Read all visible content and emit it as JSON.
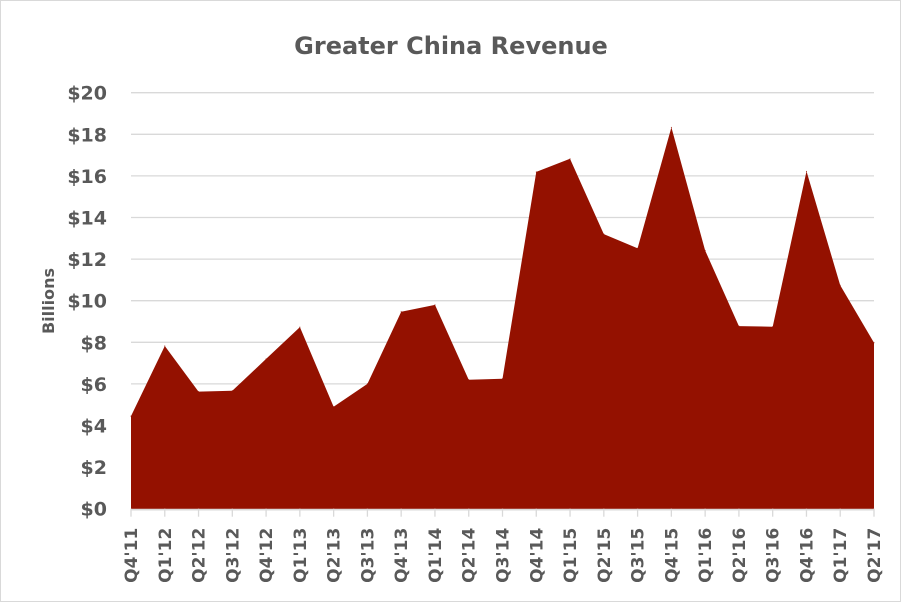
{
  "chart_data": {
    "type": "area",
    "title": "Greater China Revenue",
    "xlabel": "",
    "ylabel": "Billions",
    "ylim": [
      0,
      20
    ],
    "yticks": [
      "$0",
      "$2",
      "$4",
      "$6",
      "$8",
      "$10",
      "$12",
      "$14",
      "$16",
      "$18",
      "$20"
    ],
    "grid": true,
    "legend": "none",
    "color": "#941100",
    "categories": [
      "Q4'11",
      "Q1'12",
      "Q2'12",
      "Q3'12",
      "Q4'12",
      "Q1'13",
      "Q2'13",
      "Q3'13",
      "Q4'13",
      "Q1'14",
      "Q2'14",
      "Q3'14",
      "Q4'14",
      "Q1'15",
      "Q2'15",
      "Q3'15",
      "Q4'15",
      "Q1'16",
      "Q2'16",
      "Q3'16",
      "Q4'16",
      "Q1'17",
      "Q2'17"
    ],
    "values": [
      4.45,
      7.82,
      5.63,
      5.67,
      7.2,
      8.73,
      4.9,
      6.0,
      9.47,
      9.8,
      6.2,
      6.25,
      16.19,
      16.82,
      13.2,
      12.52,
      18.33,
      12.42,
      8.78,
      8.75,
      16.22,
      10.74,
      7.98
    ]
  }
}
